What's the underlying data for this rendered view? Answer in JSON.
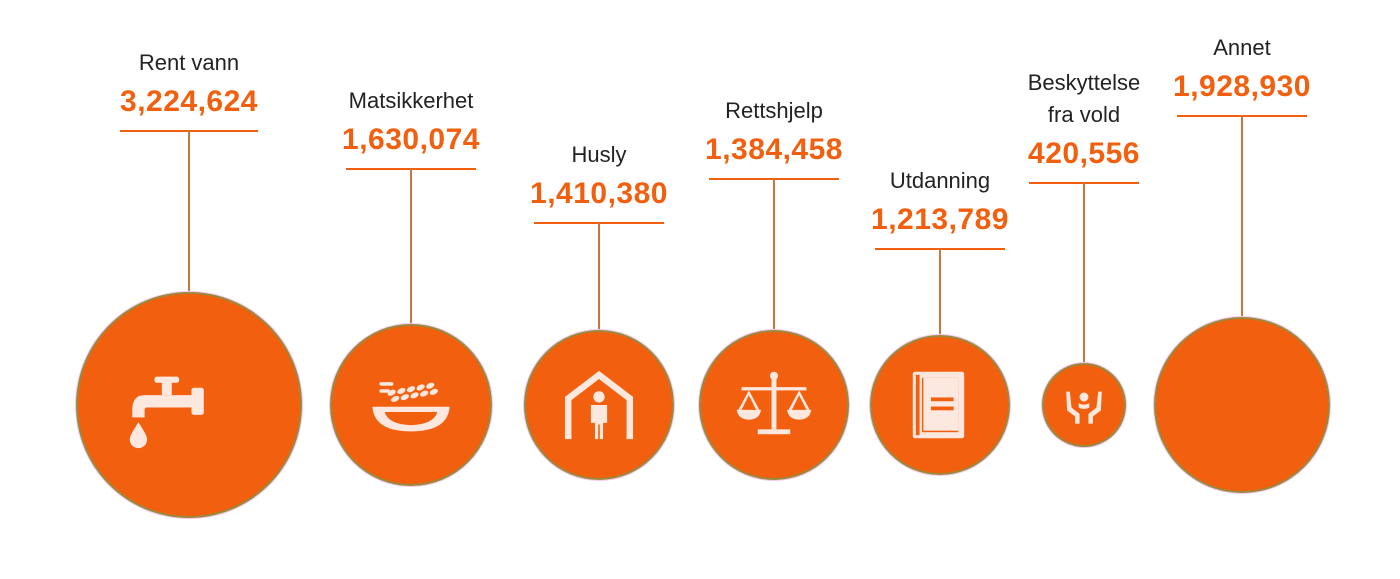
{
  "chart_data": {
    "type": "bubble",
    "categories": [
      "Rent vann",
      "Matsikkerhet",
      "Husly",
      "Rettshjelp",
      "Utdanning",
      "Beskyttelse fra vold",
      "Annet"
    ],
    "values": [
      3224624,
      1630074,
      1410380,
      1384458,
      1213789,
      420556,
      1928930
    ],
    "items": [
      {
        "label_lines": [
          "Rent vann"
        ],
        "value_text": "3,224,624",
        "value": 3224624,
        "icon": "water-tap-icon"
      },
      {
        "label_lines": [
          "Matsikkerhet"
        ],
        "value_text": "1,630,074",
        "value": 1630074,
        "icon": "grain-bowl-icon"
      },
      {
        "label_lines": [
          "Husly"
        ],
        "value_text": "1,410,380",
        "value": 1410380,
        "icon": "shelter-icon"
      },
      {
        "label_lines": [
          "Rettshjelp"
        ],
        "value_text": "1,384,458",
        "value": 1384458,
        "icon": "scales-of-justice-icon"
      },
      {
        "label_lines": [
          "Utdanning"
        ],
        "value_text": "1,213,789",
        "value": 1213789,
        "icon": "book-icon"
      },
      {
        "label_lines": [
          "Beskyttelse",
          "fra vold"
        ],
        "value_text": "420,556",
        "value": 420556,
        "icon": "protective-hands-icon"
      },
      {
        "label_lines": [
          "Annet"
        ],
        "value_text": "1,928,930",
        "value": 1928930,
        "icon": ""
      }
    ],
    "colors": {
      "accent": "#f2600f",
      "label": "#222222",
      "stem": "#c8763c",
      "icon": "#fde8e0"
    }
  }
}
